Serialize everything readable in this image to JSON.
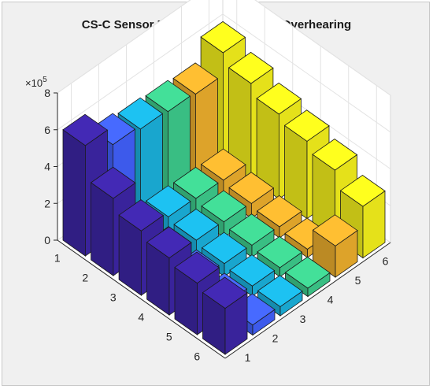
{
  "chart_data": {
    "type": "bar3d",
    "title": "CS-C Sensor Residual Energy With Overhearing",
    "zlim": [
      0,
      800000
    ],
    "z_ticks": [
      "0",
      "2",
      "4",
      "6",
      "8"
    ],
    "z_exponent": "×10",
    "z_exponent_power": "5",
    "x_ticks": [
      "1",
      "2",
      "3",
      "4",
      "5",
      "6"
    ],
    "y_ticks": [
      "1",
      "2",
      "3",
      "4",
      "5",
      "6"
    ],
    "grid": true,
    "series_colors": [
      "#3e26a8",
      "#4262ff",
      "#1bb4e0",
      "#3ecf8e",
      "#f0b12e",
      "#f9f51c"
    ],
    "values": [
      [
        600000,
        500000,
        480000,
        470000,
        460000,
        580000
      ],
      [
        420000,
        120000,
        110000,
        105000,
        100000,
        520000
      ],
      [
        350000,
        100000,
        90000,
        85000,
        80000,
        460000
      ],
      [
        310000,
        80000,
        70000,
        65000,
        60000,
        420000
      ],
      [
        280000,
        60000,
        55000,
        50000,
        45000,
        370000
      ],
      [
        250000,
        55000,
        50000,
        45000,
        170000,
        280000
      ]
    ]
  }
}
